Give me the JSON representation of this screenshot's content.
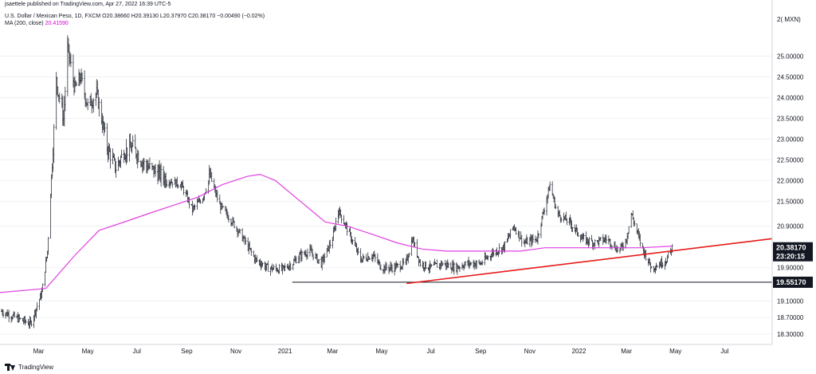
{
  "header": {
    "published_by": "jsaettele published on TradingView.com, Apr 27, 2022 16:39 UTC-5",
    "symbol_line": "U.S. Dollar / Mexican Peso, 1D, FXCM O20.38660 H20.39130 L20.37970 C20.38170 −0.00490 (−0.02%)",
    "ma_label": "MA (200, close)",
    "ma_value": "20.41590"
  },
  "footer": {
    "brand": "TradingView"
  },
  "colors": {
    "price": "#131722",
    "ma": "#e040e0",
    "trendline": "#e61a1a",
    "support": "#131722",
    "price_tag_bg": "#131722",
    "grid": "#eef0f3"
  },
  "chart_data": {
    "type": "line",
    "title": "",
    "xlabel": "",
    "ylabel": "",
    "y_unit": "MXN",
    "ylim": [
      18.05,
      26.35
    ],
    "y_tick_labels": [
      "18.30000",
      "18.70000",
      "19.10000",
      "19.90000",
      "20.90000",
      "21.50000",
      "22.00000",
      "22.50000",
      "23.00000",
      "23.50000",
      "24.00000",
      "24.50000",
      "25.00000"
    ],
    "y_partial_top_label": "2( MXN)",
    "x_tick_labels": [
      "Mar",
      "May",
      "Jul",
      "Sep",
      "Nov",
      "2021",
      "Mar",
      "May",
      "Jul",
      "Sep",
      "Nov",
      "2022",
      "Mar",
      "May",
      "Jul"
    ],
    "x_tick_dates": [
      "2020-03-01",
      "2020-05-01",
      "2020-07-01",
      "2020-09-01",
      "2020-11-01",
      "2021-01-01",
      "2021-03-01",
      "2021-05-01",
      "2021-07-01",
      "2021-09-01",
      "2021-11-01",
      "2022-01-01",
      "2022-03-01",
      "2022-05-01",
      "2022-07-01"
    ],
    "xlim": [
      "2020-01-13",
      "2022-08-29"
    ],
    "series": [
      {
        "name": "U.S. Dollar / Mexican Peso, 1D, FXCM",
        "style": "bars",
        "x": [
          "2020-01-15",
          "2020-02-01",
          "2020-02-20",
          "2020-03-05",
          "2020-03-12",
          "2020-03-19",
          "2020-03-23",
          "2020-04-01",
          "2020-04-06",
          "2020-04-15",
          "2020-04-22",
          "2020-05-01",
          "2020-05-12",
          "2020-05-25",
          "2020-06-05",
          "2020-06-15",
          "2020-06-26",
          "2020-07-10",
          "2020-07-25",
          "2020-08-10",
          "2020-08-25",
          "2020-09-08",
          "2020-09-21",
          "2020-09-30",
          "2020-10-12",
          "2020-10-28",
          "2020-11-10",
          "2020-11-25",
          "2020-12-10",
          "2020-12-28",
          "2021-01-10",
          "2021-01-20",
          "2021-02-01",
          "2021-02-15",
          "2021-03-01",
          "2021-03-08",
          "2021-03-20",
          "2021-04-05",
          "2021-04-20",
          "2021-05-01",
          "2021-05-15",
          "2021-05-31",
          "2021-06-08",
          "2021-06-18",
          "2021-07-01",
          "2021-07-15",
          "2021-08-01",
          "2021-08-15",
          "2021-09-01",
          "2021-09-15",
          "2021-09-30",
          "2021-10-12",
          "2021-10-25",
          "2021-11-10",
          "2021-11-26",
          "2021-12-05",
          "2021-12-20",
          "2022-01-05",
          "2022-01-20",
          "2022-02-05",
          "2022-02-20",
          "2022-03-01",
          "2022-03-07",
          "2022-03-20",
          "2022-04-01",
          "2022-04-12",
          "2022-04-20",
          "2022-04-27"
        ],
        "y": [
          18.85,
          18.7,
          18.55,
          19.3,
          20.3,
          22.8,
          24.4,
          23.5,
          25.2,
          24.2,
          24.5,
          23.8,
          24.1,
          22.8,
          22.3,
          22.7,
          22.8,
          22.4,
          22.2,
          22.0,
          21.9,
          21.3,
          21.6,
          22.1,
          21.4,
          21.0,
          20.6,
          20.1,
          19.9,
          19.85,
          20.0,
          20.2,
          20.3,
          20.0,
          20.6,
          21.3,
          20.8,
          20.1,
          20.2,
          19.9,
          19.9,
          20.0,
          20.6,
          20.0,
          19.9,
          20.0,
          19.9,
          20.0,
          20.0,
          20.25,
          20.4,
          20.9,
          20.5,
          20.6,
          21.9,
          21.2,
          21.0,
          20.6,
          20.5,
          20.6,
          20.3,
          20.6,
          21.2,
          20.4,
          19.9,
          20.0,
          20.1,
          20.38
        ]
      },
      {
        "name": "MA (200, close)",
        "style": "line",
        "x": [
          "2020-01-13",
          "2020-03-10",
          "2020-04-15",
          "2020-05-15",
          "2020-06-15",
          "2020-07-15",
          "2020-08-15",
          "2020-09-15",
          "2020-10-15",
          "2020-11-15",
          "2020-12-01",
          "2020-12-20",
          "2021-01-20",
          "2021-02-20",
          "2021-03-20",
          "2021-04-20",
          "2021-05-20",
          "2021-06-20",
          "2021-07-20",
          "2021-08-20",
          "2021-09-20",
          "2021-10-20",
          "2021-11-20",
          "2021-12-20",
          "2022-01-20",
          "2022-02-20",
          "2022-03-20",
          "2022-04-27"
        ],
        "y": [
          19.3,
          19.4,
          20.2,
          20.8,
          21.0,
          21.2,
          21.4,
          21.6,
          21.9,
          22.1,
          22.15,
          22.0,
          21.5,
          21.0,
          20.9,
          20.7,
          20.5,
          20.35,
          20.3,
          20.3,
          20.3,
          20.3,
          20.38,
          20.38,
          20.38,
          20.38,
          20.38,
          20.42
        ]
      }
    ],
    "annotations": {
      "trendline": {
        "x": [
          "2021-06-01",
          "2022-08-29"
        ],
        "y": [
          19.52,
          20.6
        ]
      },
      "support_line": {
        "x": [
          "2021-01-10",
          "2022-08-29"
        ],
        "y": [
          19.55,
          19.55
        ]
      },
      "price_tag": {
        "value": 20.38,
        "label": "20.38170",
        "countdown": "23:20:15"
      },
      "support_tag": {
        "value": 19.55,
        "label": "19.55170"
      }
    },
    "grid": false,
    "legend": "none"
  }
}
